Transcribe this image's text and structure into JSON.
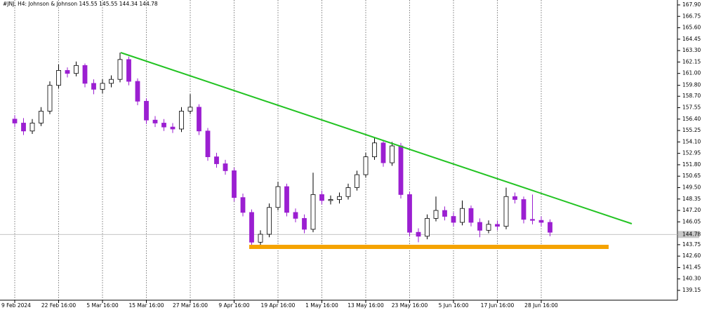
{
  "chart_data": {
    "type": "candlestick",
    "title": "#JNJ, H4:  Johnson & Johnson  145.55 145.55 144.34 144.78",
    "categories": [
      "9 Feb 2024",
      null,
      null,
      null,
      null,
      "22 Feb 16:00",
      null,
      null,
      null,
      null,
      "5 Mar 16:00",
      null,
      null,
      null,
      null,
      "15 Mar 16:00",
      null,
      null,
      null,
      null,
      "27 Mar 16:00",
      null,
      null,
      null,
      null,
      "9 Apr 16:00",
      null,
      null,
      null,
      null,
      "19 Apr 16:00",
      null,
      null,
      null,
      null,
      "1 May 16:00",
      null,
      null,
      null,
      null,
      "13 May 16:00",
      null,
      null,
      null,
      null,
      "23 May 16:00",
      null,
      null,
      null,
      null,
      "5 Jun 16:00",
      null,
      null,
      null,
      null,
      "17 Jun 16:00",
      null,
      null,
      null,
      null,
      "28 Jun 16:00",
      null
    ],
    "open": [
      156.4,
      156.0,
      155.2,
      156.0,
      157.2,
      159.8,
      161.3,
      161.0,
      161.8,
      160.0,
      159.4,
      160.0,
      160.4,
      162.4,
      160.2,
      158.2,
      156.3,
      156.0,
      155.6,
      155.4,
      157.2,
      157.6,
      155.2,
      152.6,
      151.9,
      151.2,
      148.5,
      147.0,
      144.0,
      144.8,
      147.5,
      149.6,
      147.0,
      146.4,
      145.3,
      148.8,
      148.2,
      148.3,
      148.6,
      149.5,
      150.8,
      152.6,
      154.0,
      152.0,
      153.7,
      148.8,
      145.0,
      144.6,
      146.4,
      147.2,
      146.6,
      146.0,
      147.4,
      146.0,
      145.2,
      145.8,
      145.6,
      148.6,
      148.3,
      146.3,
      146.2,
      146.0
    ],
    "high": [
      156.8,
      156.5,
      156.4,
      157.6,
      160.2,
      161.9,
      161.6,
      162.2,
      162.0,
      160.4,
      160.4,
      160.8,
      163.1,
      162.7,
      160.5,
      158.5,
      156.7,
      156.4,
      156.0,
      157.6,
      158.9,
      157.9,
      155.5,
      153.0,
      152.3,
      151.5,
      148.9,
      147.3,
      145.2,
      147.9,
      150.1,
      149.9,
      147.4,
      146.8,
      151.0,
      149.2,
      148.7,
      149.0,
      149.9,
      151.2,
      153.0,
      154.5,
      154.3,
      154.1,
      154.0,
      149.1,
      145.4,
      146.8,
      148.6,
      147.6,
      147.0,
      148.2,
      147.7,
      146.4,
      146.2,
      146.2,
      149.5,
      149.0,
      148.6,
      148.8,
      146.6,
      146.3
    ],
    "low": [
      155.6,
      154.8,
      154.9,
      155.7,
      156.9,
      159.5,
      160.6,
      160.7,
      159.6,
      158.9,
      159.0,
      159.6,
      160.1,
      159.8,
      157.8,
      155.9,
      155.6,
      155.2,
      155.0,
      155.1,
      156.9,
      154.8,
      152.2,
      151.5,
      150.8,
      148.1,
      146.6,
      143.4,
      143.5,
      144.5,
      147.2,
      146.6,
      146.0,
      144.9,
      145.0,
      147.8,
      147.8,
      147.9,
      148.3,
      149.2,
      150.5,
      152.3,
      151.6,
      151.7,
      148.4,
      144.6,
      144.0,
      144.3,
      146.1,
      146.2,
      145.6,
      145.7,
      145.6,
      144.5,
      144.9,
      145.2,
      145.3,
      147.9,
      145.9,
      145.8,
      145.6,
      144.6
    ],
    "close": [
      156.0,
      155.2,
      156.0,
      157.2,
      159.8,
      161.3,
      161.0,
      161.8,
      160.0,
      159.4,
      160.0,
      160.4,
      162.4,
      160.2,
      158.2,
      156.3,
      156.0,
      155.6,
      155.4,
      157.2,
      157.6,
      155.2,
      152.6,
      151.9,
      151.2,
      148.5,
      147.0,
      144.0,
      144.8,
      147.5,
      149.6,
      147.0,
      146.4,
      145.3,
      148.8,
      148.2,
      148.3,
      148.6,
      149.5,
      150.8,
      152.6,
      154.0,
      152.0,
      153.7,
      148.8,
      145.0,
      144.6,
      146.4,
      147.2,
      146.6,
      146.0,
      147.4,
      146.0,
      145.2,
      145.8,
      145.6,
      148.6,
      148.3,
      146.3,
      146.2,
      146.0,
      145.0
    ],
    "up_color": "#ffffff",
    "down_color": "#9b1fd1",
    "current_price": 144.78,
    "ylim": [
      139.15,
      167.9
    ],
    "yticks": [
      {
        "value": 167.9,
        "label": "167.90"
      },
      166.75,
      {
        "value": 165.6,
        "label": "165.60"
      },
      164.45,
      {
        "value": 163.3,
        "label": "163.30"
      },
      162.15,
      {
        "value": 161.0,
        "label": "161.00"
      },
      {
        "value": 159.8,
        "label": "159.80"
      },
      {
        "value": 158.7,
        "label": "158.70"
      },
      157.55,
      {
        "value": 156.4,
        "label": "156.40"
      },
      155.25,
      {
        "value": 154.1,
        "label": "154.10"
      },
      152.95,
      {
        "value": 151.8,
        "label": "151.80"
      },
      150.65,
      {
        "value": 149.5,
        "label": "149.50"
      },
      148.35,
      {
        "value": 147.2,
        "label": "147.20"
      },
      146.05,
      143.75,
      {
        "value": 142.6,
        "label": "142.60"
      },
      141.45,
      {
        "value": 140.3,
        "label": "140.30"
      },
      139.15
    ],
    "grid": true
  }
}
